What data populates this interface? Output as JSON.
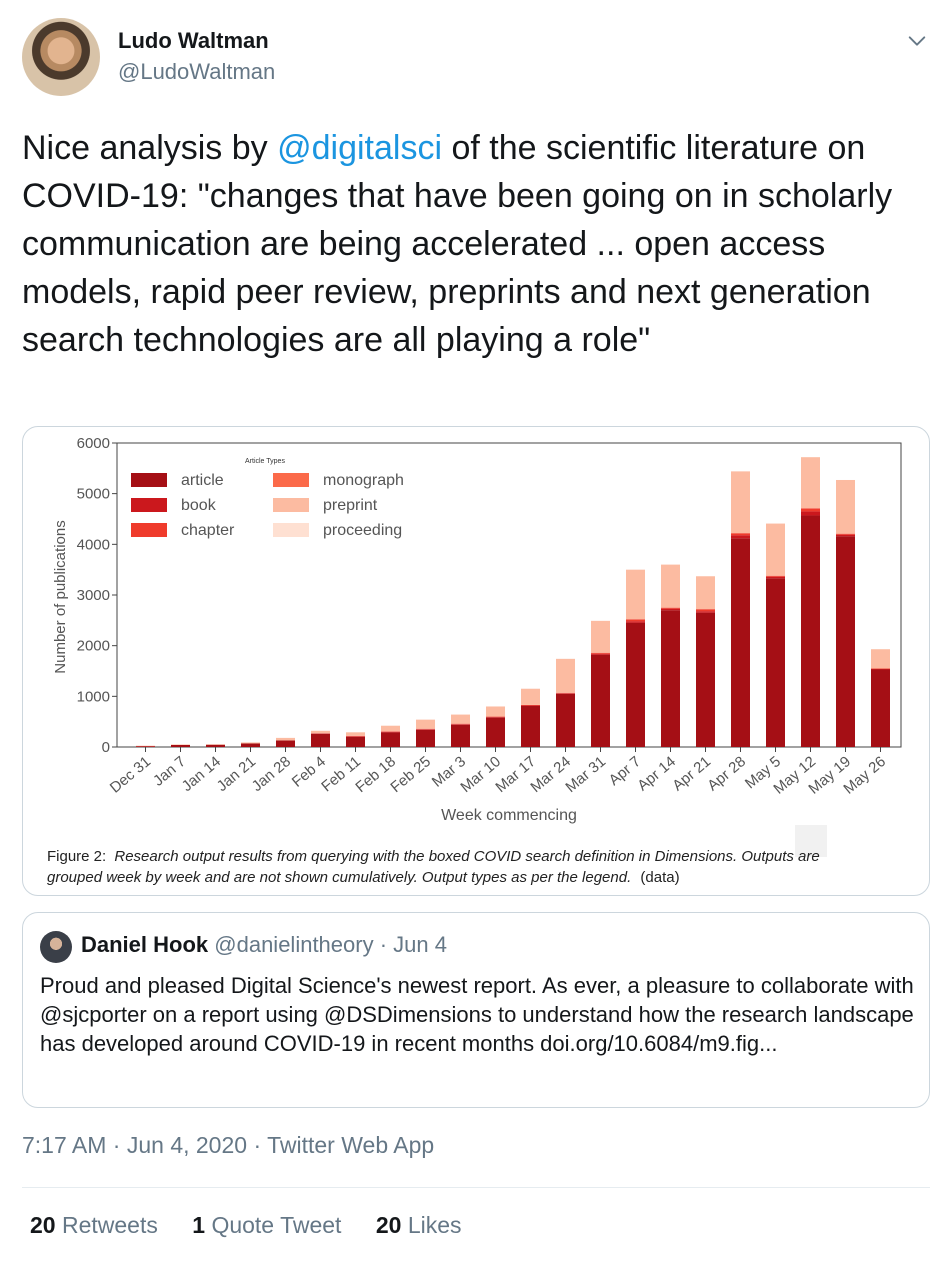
{
  "author": {
    "name": "Ludo Waltman",
    "handle": "@LudoWaltman"
  },
  "tweet": {
    "text_before": "Nice analysis by ",
    "mention": "@digitalsci",
    "text_after": " of the scientific literature on COVID-19: \"changes that have been going on in scholarly communication are being accelerated ... open access models, rapid peer review, preprints and next generation search technologies are all playing a role\""
  },
  "quoted_tweet": {
    "name": "Daniel Hook",
    "handle": "@danielintheory",
    "separator": "·",
    "date": "Jun 4",
    "text": "Proud and pleased Digital Science's newest report. As ever, a pleasure to collaborate with @sjcporter on a report using @DSDimensions to understand how the research landscape has developed around COVID-19 in recent months doi.org/10.6084/m9.fig..."
  },
  "timestamp": {
    "time": "7:17 AM",
    "date": "Jun 4, 2020",
    "source": "Twitter Web App",
    "separator": "·"
  },
  "stats": [
    {
      "count": "20",
      "label": "Retweets"
    },
    {
      "count": "1",
      "label": "Quote Tweet"
    },
    {
      "count": "20",
      "label": "Likes"
    }
  ],
  "icons": {
    "more": "chevron-down-icon"
  },
  "colors": {
    "accent": "#1b95e0",
    "muted": "#657786",
    "article": "#a50f15",
    "book": "#cb181d",
    "chapter": "#ef3b2c",
    "monograph": "#fb6a4a",
    "preprint": "#fcbba1",
    "proceeding": "#fee0d2"
  },
  "chart_data": {
    "type": "bar",
    "stacked": true,
    "categories": [
      "Dec 31",
      "Jan 7",
      "Jan 14",
      "Jan 21",
      "Jan 28",
      "Feb 4",
      "Feb 11",
      "Feb 18",
      "Feb 25",
      "Mar 3",
      "Mar 10",
      "Mar 17",
      "Mar 24",
      "Mar 31",
      "Apr 7",
      "Apr 14",
      "Apr 21",
      "Apr 28",
      "May 5",
      "May 12",
      "May 19",
      "May 26"
    ],
    "series": [
      {
        "name": "article",
        "values": [
          20,
          40,
          45,
          70,
          130,
          260,
          200,
          290,
          340,
          440,
          580,
          810,
          1050,
          1820,
          2450,
          2700,
          2650,
          4120,
          3330,
          4570,
          4160,
          1530
        ]
      },
      {
        "name": "book",
        "values": [
          0,
          0,
          0,
          0,
          0,
          10,
          10,
          10,
          10,
          10,
          10,
          10,
          10,
          20,
          30,
          30,
          30,
          60,
          30,
          80,
          30,
          10
        ]
      },
      {
        "name": "chapter",
        "values": [
          0,
          0,
          0,
          0,
          0,
          0,
          10,
          10,
          10,
          10,
          10,
          10,
          10,
          20,
          40,
          20,
          40,
          40,
          20,
          60,
          20,
          10
        ]
      },
      {
        "name": "monograph",
        "values": [
          0,
          0,
          0,
          0,
          0,
          0,
          0,
          0,
          0,
          0,
          0,
          0,
          0,
          0,
          0,
          0,
          0,
          0,
          0,
          0,
          0,
          0
        ]
      },
      {
        "name": "preprint",
        "values": [
          5,
          10,
          10,
          20,
          50,
          50,
          70,
          110,
          180,
          180,
          200,
          320,
          670,
          630,
          980,
          850,
          650,
          1220,
          1030,
          1010,
          1060,
          380
        ]
      },
      {
        "name": "proceeding",
        "values": [
          0,
          0,
          0,
          0,
          0,
          0,
          0,
          0,
          0,
          0,
          0,
          0,
          0,
          0,
          0,
          0,
          0,
          0,
          0,
          0,
          0,
          0
        ]
      }
    ],
    "yticks": [
      0,
      1000,
      2000,
      3000,
      4000,
      5000,
      6000
    ],
    "ylim": [
      0,
      6000
    ],
    "ylabel": "Number of publications",
    "xlabel": "Week commencing",
    "legend_title": "Article Types",
    "legend_position": "top-left",
    "grid": false,
    "caption_label": "Figure 2:",
    "caption_text": "Research output results from querying with the boxed COVID search definition in Dimensions. Outputs are grouped week by week and are not shown cumulatively. Output types as per the legend.",
    "caption_suffix": "(data)"
  }
}
